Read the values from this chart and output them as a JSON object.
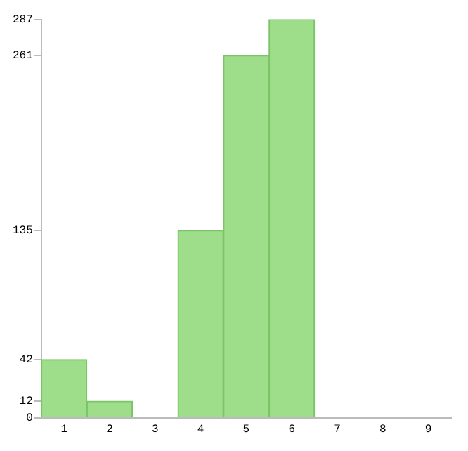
{
  "chart_data": {
    "type": "bar",
    "categories": [
      "1",
      "2",
      "3",
      "4",
      "5",
      "6",
      "7",
      "8",
      "9"
    ],
    "values": [
      42,
      12,
      0,
      135,
      261,
      287,
      0,
      0,
      0
    ],
    "color": "#9ede8a",
    "ylim": [
      0,
      287
    ],
    "yticks": [
      0,
      12,
      42,
      135,
      261,
      287
    ],
    "grid": false,
    "legend": false
  }
}
